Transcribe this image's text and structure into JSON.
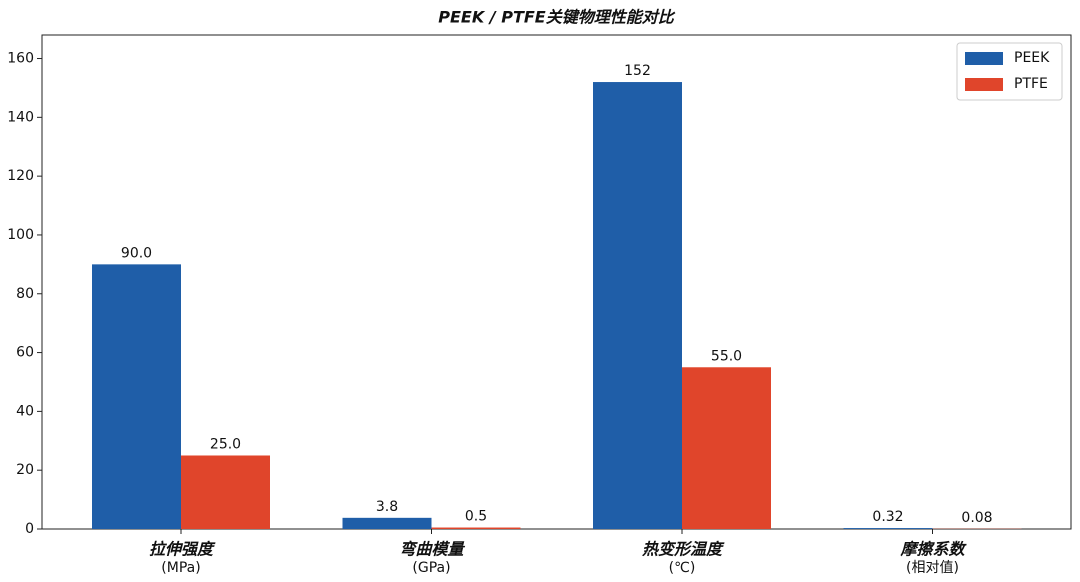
{
  "chart_data": {
    "type": "bar",
    "title": "PEEK / PTFE关键物理性能对比",
    "categories": [
      "拉伸强度",
      "弯曲模量",
      "热变形温度",
      "摩擦系数"
    ],
    "category_units": [
      "(MPa)",
      "(GPa)",
      "(℃)",
      "(相对值)"
    ],
    "series": [
      {
        "name": "PEEK",
        "color": "#1f5ea8",
        "values": [
          90,
          3.8,
          152,
          0.32
        ],
        "value_labels": [
          "90.0",
          "3.8",
          "152",
          "0.32"
        ]
      },
      {
        "name": "PTFE",
        "color": "#e0452b",
        "values": [
          25,
          0.5,
          55,
          0.08
        ],
        "value_labels": [
          "25.0",
          "0.5",
          "55.0",
          "0.08"
        ]
      }
    ],
    "ylim": [
      0,
      168
    ],
    "yticks": [
      0,
      20,
      40,
      60,
      80,
      100,
      120,
      140,
      160
    ],
    "grid": false,
    "legend": "upper right"
  }
}
